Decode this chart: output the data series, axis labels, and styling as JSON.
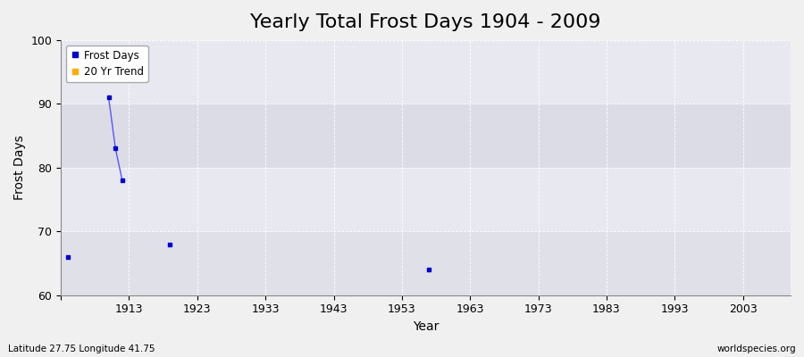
{
  "title": "Yearly Total Frost Days 1904 - 2009",
  "xlabel": "Year",
  "ylabel": "Frost Days",
  "xlim": [
    1903,
    2010
  ],
  "ylim": [
    60,
    100
  ],
  "yticks": [
    60,
    70,
    80,
    90,
    100
  ],
  "xticks": [
    1903,
    1913,
    1923,
    1933,
    1943,
    1953,
    1963,
    1973,
    1983,
    1993,
    2003
  ],
  "xticklabels": [
    "",
    "1913",
    "1923",
    "1933",
    "1943",
    "1953",
    "1963",
    "1973",
    "1983",
    "1993",
    "2003"
  ],
  "isolated_years": [
    1904,
    1919,
    1957
  ],
  "isolated_values": [
    66,
    68,
    64
  ],
  "connected_years": [
    1910,
    1911,
    1912
  ],
  "connected_values": [
    91,
    83,
    78
  ],
  "line_color": "#5555ff",
  "marker_color": "#0000cc",
  "legend_frost_color": "#0000cc",
  "legend_trend_color": "#ffaa00",
  "bg_color": "#f0f0f0",
  "plot_bg_color": "#e8e8ee",
  "band_light_color": "#f0f0f5",
  "band_dark_color": "#e0e0e8",
  "grid_color": "#ffffff",
  "watermark_left": "Latitude 27.75 Longitude 41.75",
  "watermark_right": "worldspecies.org",
  "title_fontsize": 16,
  "label_fontsize": 10,
  "tick_fontsize": 9,
  "band_ranges": [
    [
      60,
      70
    ],
    [
      70,
      80
    ],
    [
      80,
      90
    ],
    [
      90,
      100
    ]
  ],
  "band_colors": [
    "#e0e0e8",
    "#e8e8f0",
    "#dcdce6",
    "#e8e8f0"
  ]
}
